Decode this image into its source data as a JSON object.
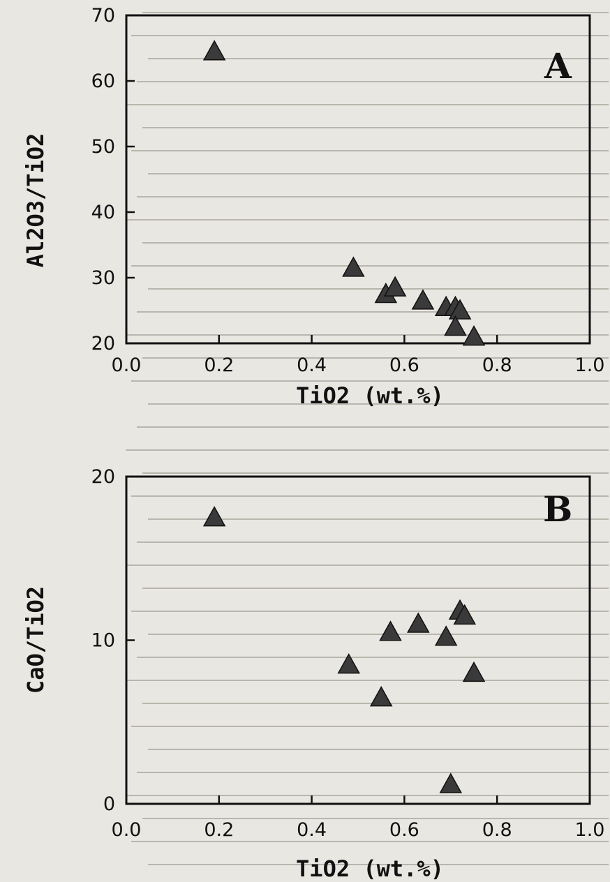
{
  "colors": {
    "marker": "#3a3a3a",
    "axis": "#111111",
    "background": "#e9e7e1"
  },
  "chart_data": [
    {
      "type": "scatter",
      "panel_label": "A",
      "xlabel": "TiO2 (wt.%)",
      "ylabel": "Al2O3/TiO2",
      "xlim": [
        0.0,
        1.0
      ],
      "ylim": [
        20,
        70
      ],
      "xticks": [
        "0.0",
        "0.2",
        "0.4",
        "0.6",
        "0.8",
        "1.0"
      ],
      "yticks": [
        "20",
        "30",
        "40",
        "50",
        "60",
        "70"
      ],
      "marker": "triangle",
      "points": [
        {
          "x": 0.19,
          "y": 64.5
        },
        {
          "x": 0.49,
          "y": 31.5
        },
        {
          "x": 0.56,
          "y": 27.5
        },
        {
          "x": 0.58,
          "y": 28.5
        },
        {
          "x": 0.64,
          "y": 26.5
        },
        {
          "x": 0.69,
          "y": 25.5
        },
        {
          "x": 0.71,
          "y": 25.5
        },
        {
          "x": 0.72,
          "y": 25.0
        },
        {
          "x": 0.71,
          "y": 22.5
        },
        {
          "x": 0.75,
          "y": 21.0
        }
      ]
    },
    {
      "type": "scatter",
      "panel_label": "B",
      "xlabel": "TiO2 (wt.%)",
      "ylabel": "CaO/TiO2",
      "xlim": [
        0.0,
        1.0
      ],
      "ylim": [
        0,
        20
      ],
      "xticks": [
        "0.0",
        "0.2",
        "0.4",
        "0.6",
        "0.8",
        "1.0"
      ],
      "yticks": [
        "0",
        "10",
        "20"
      ],
      "marker": "triangle",
      "points": [
        {
          "x": 0.19,
          "y": 17.5
        },
        {
          "x": 0.48,
          "y": 8.5
        },
        {
          "x": 0.55,
          "y": 6.5
        },
        {
          "x": 0.57,
          "y": 10.5
        },
        {
          "x": 0.63,
          "y": 11.0
        },
        {
          "x": 0.69,
          "y": 10.2
        },
        {
          "x": 0.72,
          "y": 11.8
        },
        {
          "x": 0.73,
          "y": 11.5
        },
        {
          "x": 0.75,
          "y": 8.0
        },
        {
          "x": 0.7,
          "y": 1.2
        }
      ]
    }
  ]
}
